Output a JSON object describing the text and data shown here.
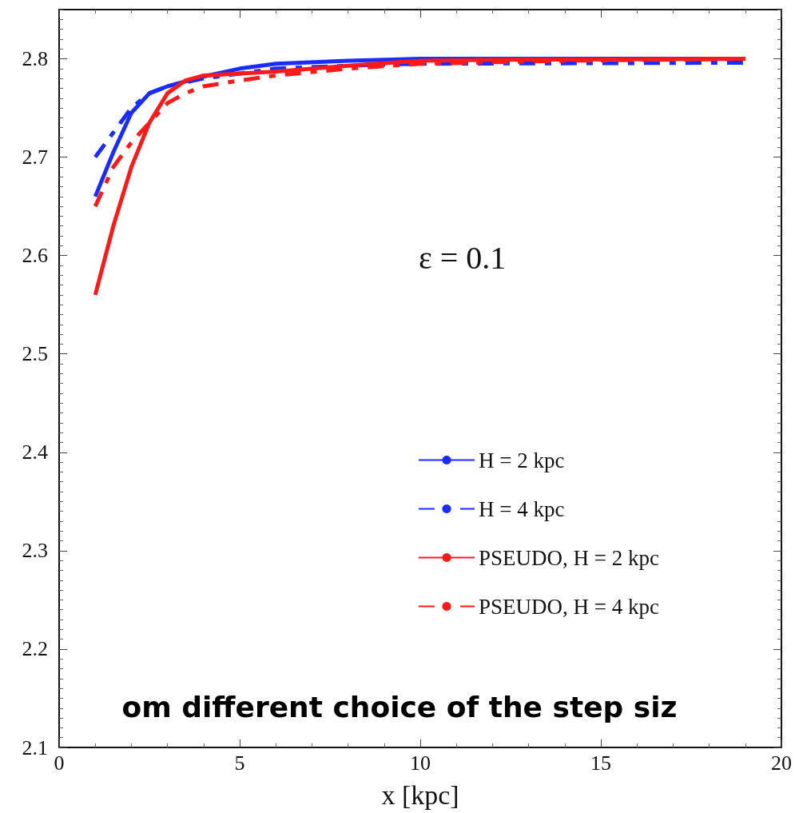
{
  "chart_data": {
    "type": "line",
    "xlabel": "x [kpc]",
    "xlim": [
      0,
      20
    ],
    "xticks": [
      0,
      5,
      10,
      15,
      20
    ],
    "ylim": [
      2.1,
      2.85
    ],
    "yticks": [
      2.1,
      2.2,
      2.3,
      2.4,
      2.5,
      2.6,
      2.7,
      2.8
    ],
    "grid": false,
    "legend": "bottom right",
    "marker": "none",
    "annotations": [
      "ε = 0.1",
      "om different choice of the step siz"
    ],
    "series": [
      {
        "name": "H = 2 kpc",
        "color": "#1a2cff",
        "line_style": "solid",
        "x": [
          1,
          1.5,
          2,
          2.5,
          3,
          4,
          5,
          6,
          8,
          10,
          19
        ],
        "values": [
          2.66,
          2.705,
          2.745,
          2.765,
          2.772,
          2.782,
          2.79,
          2.795,
          2.798,
          2.8,
          2.8
        ]
      },
      {
        "name": "H = 4 kpc",
        "color": "#1a2cff",
        "line_style": "dashed",
        "x": [
          1,
          1.5,
          2,
          2.5,
          3,
          4,
          5,
          6,
          8,
          10,
          19
        ],
        "values": [
          2.7,
          2.725,
          2.75,
          2.765,
          2.772,
          2.78,
          2.785,
          2.79,
          2.793,
          2.795,
          2.796
        ]
      },
      {
        "name": "PSEUDO, H = 2 kpc",
        "color": "#ff1a1a",
        "line_style": "solid",
        "x": [
          1,
          1.5,
          2,
          2.5,
          3,
          3.5,
          4,
          5,
          6,
          8,
          10,
          12,
          19
        ],
        "values": [
          2.56,
          2.63,
          2.69,
          2.735,
          2.765,
          2.778,
          2.783,
          2.785,
          2.787,
          2.793,
          2.798,
          2.799,
          2.8
        ]
      },
      {
        "name": "PSEUDO, H = 4 kpc",
        "color": "#ff1a1a",
        "line_style": "dashed",
        "x": [
          1,
          1.5,
          2,
          2.5,
          3,
          3.5,
          4,
          5,
          6,
          8,
          10,
          14,
          19
        ],
        "values": [
          2.65,
          2.69,
          2.715,
          2.735,
          2.755,
          2.765,
          2.772,
          2.778,
          2.783,
          2.79,
          2.795,
          2.798,
          2.8
        ]
      }
    ]
  }
}
